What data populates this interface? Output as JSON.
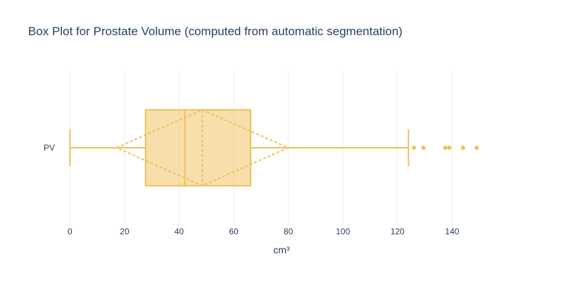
{
  "chart_data": {
    "type": "box",
    "orientation": "horizontal",
    "title": "Box Plot for Prostate Volume (computed from automatic segmentation)",
    "xlabel": "cm³",
    "ylabel": "",
    "xlim": [
      -5,
      160
    ],
    "xticks": [
      0,
      20,
      40,
      60,
      80,
      100,
      120,
      140
    ],
    "grid": true,
    "color": "#f0c05a",
    "series": [
      {
        "name": "PV",
        "min": 0,
        "q1": 27.7,
        "median": 42.1,
        "q3": 66.2,
        "max": 124,
        "mean": 48.5,
        "sd": 31.4,
        "outliers": [
          126,
          129.5,
          137.5,
          139,
          144,
          149
        ]
      }
    ]
  }
}
